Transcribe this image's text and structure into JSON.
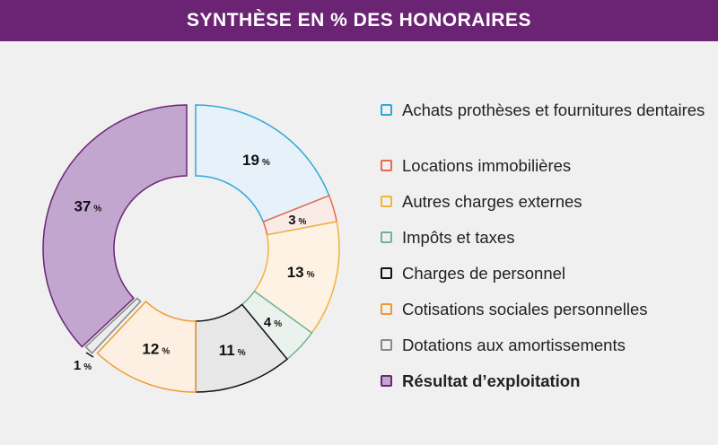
{
  "title": "SYNTHÈSE EN % DES HONORAIRES",
  "chart_data": {
    "type": "donut",
    "title": "SYNTHÈSE EN % DES HONORAIRES",
    "unit": "%",
    "series": [
      {
        "label": "Achats prothèses et fournitures dentaires",
        "value": 19,
        "stroke": "#2ea8d9",
        "fill": "#e6f1fa"
      },
      {
        "label": "Locations immobilières",
        "value": 3,
        "stroke": "#e8694f",
        "fill": "#fbebe6"
      },
      {
        "label": "Autres charges externes",
        "value": 13,
        "stroke": "#f0b33c",
        "fill": "#fdf2e3"
      },
      {
        "label": "Impôts et taxes",
        "value": 4,
        "stroke": "#6fb29a",
        "fill": "#eaf2ed"
      },
      {
        "label": "Charges de personnel",
        "value": 11,
        "stroke": "#111111",
        "fill": "#e7e7e7"
      },
      {
        "label": "Cotisations sociales personnelles",
        "value": 12,
        "stroke": "#ef9a2e",
        "fill": "#fdf0e2"
      },
      {
        "label": "Dotations aux amortissements",
        "value": 1,
        "stroke": "#888888",
        "fill": "#ececec"
      },
      {
        "label": "Résultat d’exploitation",
        "value": 37,
        "stroke": "#6b2474",
        "fill": "#c2a6cf",
        "bold": true
      }
    ]
  }
}
